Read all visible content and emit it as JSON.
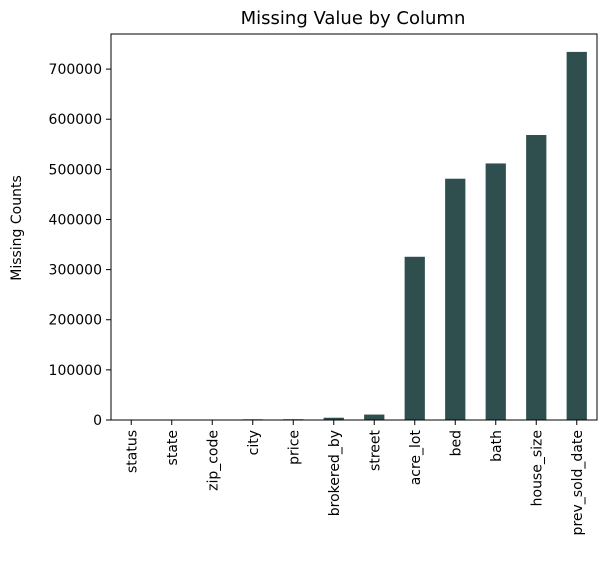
{
  "chart_data": {
    "type": "bar",
    "title": "Missing Value by Column",
    "xlabel": "",
    "ylabel": "Missing Counts",
    "categories": [
      "status",
      "state",
      "zip_code",
      "city",
      "price",
      "brokered_by",
      "street",
      "acre_lot",
      "bed",
      "bath",
      "house_size",
      "prev_sold_date"
    ],
    "values": [
      0,
      8,
      299,
      1407,
      1541,
      4533,
      10866,
      325589,
      481317,
      511771,
      568484,
      734297
    ],
    "ylim": [
      0,
      770000
    ],
    "yticks": [
      0,
      100000,
      200000,
      300000,
      400000,
      500000,
      600000,
      700000
    ],
    "ytick_labels": [
      "0",
      "100000",
      "200000",
      "300000",
      "400000",
      "500000",
      "600000",
      "700000"
    ],
    "grid": false,
    "legend": "none",
    "bar_color": "#2f4f4f"
  }
}
